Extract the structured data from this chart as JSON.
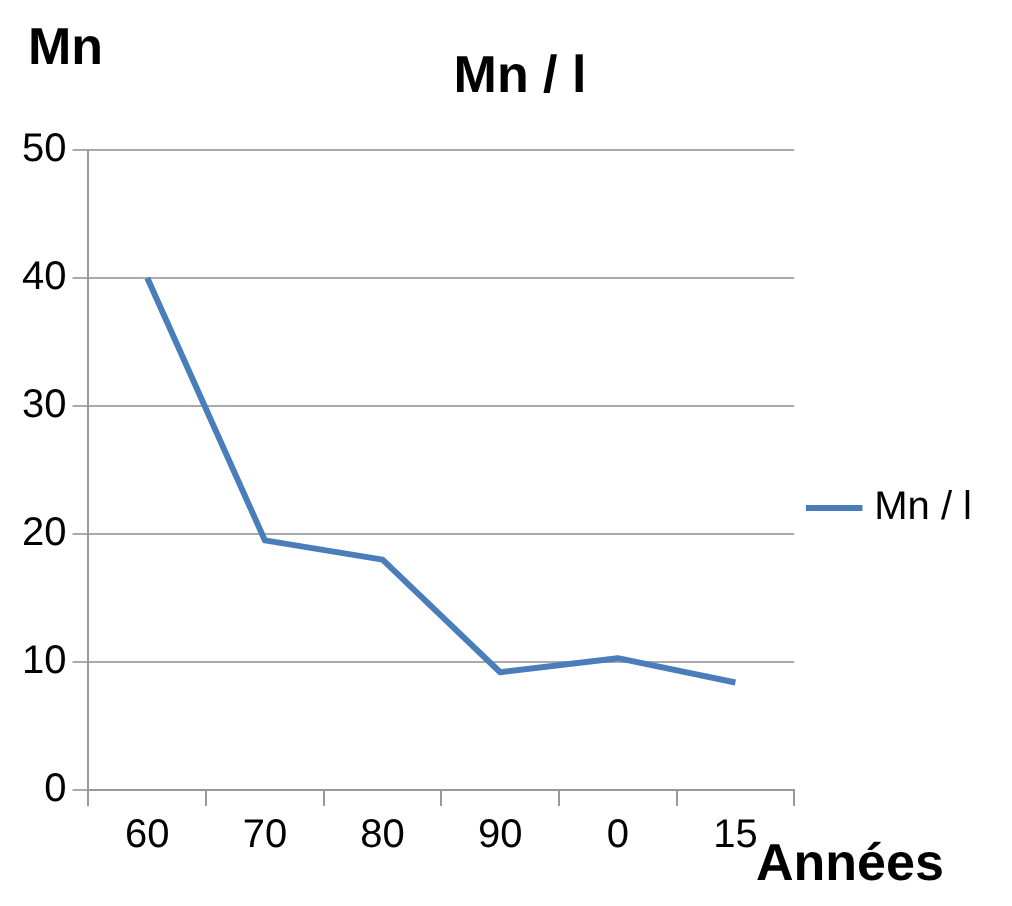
{
  "chart_data": {
    "type": "line",
    "title": "Mn / l",
    "ylabel": "Mn",
    "xlabel": "Années",
    "categories": [
      "60",
      "70",
      "80",
      "90",
      "0",
      "15"
    ],
    "series": [
      {
        "name": "Mn / l",
        "color": "#4a7ebb",
        "values": [
          40,
          19.5,
          18,
          9.2,
          10.3,
          8.4
        ]
      }
    ],
    "ylim": [
      0,
      50
    ],
    "yticks": [
      0,
      10,
      20,
      30,
      40,
      50
    ],
    "grid": "y",
    "legend": "right",
    "marker": "none",
    "line_style": "solid"
  }
}
